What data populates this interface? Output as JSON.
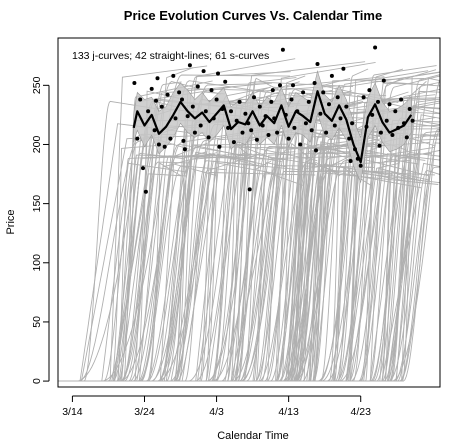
{
  "chart_data": {
    "type": "line",
    "title": "Price Evolution Curves Vs. Calendar Time",
    "xlabel": "Calendar Time",
    "ylabel": "Price",
    "annotation": "133 j-curves; 42 straight-lines; 61 s-curves",
    "x_axis": {
      "unit": "days since 3/14",
      "range": [
        -2,
        51
      ],
      "ticks": [
        {
          "label": "3/14",
          "value": 0
        },
        {
          "label": "3/24",
          "value": 10
        },
        {
          "label": "4/3",
          "value": 20
        },
        {
          "label": "4/13",
          "value": 30
        },
        {
          "label": "4/23",
          "value": 40
        }
      ]
    },
    "y_axis": {
      "range": [
        -5,
        290
      ],
      "ticks": [
        0,
        50,
        100,
        150,
        200,
        250
      ]
    },
    "grid": false,
    "legend": "none",
    "colors": {
      "curves": "#b0b0b0",
      "band": "#c8c8c8",
      "mean_line": "#000000",
      "points": "#000000"
    },
    "series": [
      {
        "values": [
          [
            8.5,
            214
          ],
          [
            9,
            228
          ],
          [
            10,
            216
          ],
          [
            11,
            225
          ],
          [
            12,
            209
          ],
          [
            13,
            215
          ],
          [
            14,
            225
          ],
          [
            15,
            236
          ],
          [
            16,
            228
          ],
          [
            17,
            222
          ],
          [
            18,
            227
          ],
          [
            19,
            219
          ],
          [
            20,
            226
          ],
          [
            21,
            233
          ],
          [
            22,
            213
          ],
          [
            23,
            219
          ],
          [
            24,
            217
          ],
          [
            25,
            228
          ],
          [
            26,
            216
          ],
          [
            27,
            224
          ],
          [
            28,
            218
          ],
          [
            29,
            233
          ],
          [
            30,
            215
          ],
          [
            31,
            228
          ],
          [
            32,
            224
          ],
          [
            33,
            219
          ],
          [
            34,
            245
          ],
          [
            35,
            226
          ],
          [
            36,
            220
          ],
          [
            37,
            233
          ],
          [
            38,
            221
          ],
          [
            39,
            200
          ],
          [
            40,
            185
          ],
          [
            41,
            223
          ],
          [
            42,
            234
          ],
          [
            43,
            219
          ],
          [
            44,
            210
          ],
          [
            45,
            213
          ],
          [
            46,
            216
          ],
          [
            47,
            225
          ]
        ]
      }
    ],
    "band": {
      "upper": [
        [
          8.5,
          226
        ],
        [
          9,
          244
        ],
        [
          10,
          238
        ],
        [
          11,
          240
        ],
        [
          12,
          228
        ],
        [
          13,
          232
        ],
        [
          14,
          244
        ],
        [
          15,
          252
        ],
        [
          16,
          246
        ],
        [
          17,
          238
        ],
        [
          18,
          244
        ],
        [
          19,
          236
        ],
        [
          20,
          242
        ],
        [
          21,
          248
        ],
        [
          22,
          232
        ],
        [
          23,
          236
        ],
        [
          24,
          235
        ],
        [
          25,
          244
        ],
        [
          26,
          232
        ],
        [
          27,
          240
        ],
        [
          28,
          236
        ],
        [
          29,
          248
        ],
        [
          30,
          232
        ],
        [
          31,
          244
        ],
        [
          32,
          240
        ],
        [
          33,
          236
        ],
        [
          34,
          262
        ],
        [
          35,
          242
        ],
        [
          36,
          236
        ],
        [
          37,
          250
        ],
        [
          38,
          238
        ],
        [
          39,
          220
        ],
        [
          40,
          206
        ],
        [
          41,
          240
        ],
        [
          42,
          252
        ],
        [
          43,
          236
        ],
        [
          44,
          228
        ],
        [
          45,
          230
        ],
        [
          46,
          234
        ],
        [
          47,
          240
        ]
      ],
      "lower": [
        [
          8.5,
          202
        ],
        [
          9,
          212
        ],
        [
          10,
          198
        ],
        [
          11,
          208
        ],
        [
          12,
          192
        ],
        [
          13,
          198
        ],
        [
          14,
          206
        ],
        [
          15,
          218
        ],
        [
          16,
          210
        ],
        [
          17,
          206
        ],
        [
          18,
          210
        ],
        [
          19,
          202
        ],
        [
          20,
          208
        ],
        [
          21,
          216
        ],
        [
          22,
          196
        ],
        [
          23,
          202
        ],
        [
          24,
          200
        ],
        [
          25,
          210
        ],
        [
          26,
          200
        ],
        [
          27,
          206
        ],
        [
          28,
          200
        ],
        [
          29,
          216
        ],
        [
          30,
          198
        ],
        [
          31,
          210
        ],
        [
          32,
          208
        ],
        [
          33,
          202
        ],
        [
          34,
          226
        ],
        [
          35,
          208
        ],
        [
          36,
          204
        ],
        [
          37,
          214
        ],
        [
          38,
          204
        ],
        [
          39,
          182
        ],
        [
          40,
          168
        ],
        [
          41,
          206
        ],
        [
          42,
          216
        ],
        [
          43,
          202
        ],
        [
          44,
          194
        ],
        [
          45,
          196
        ],
        [
          46,
          200
        ],
        [
          47,
          210
        ]
      ]
    },
    "points": [
      [
        8.6,
        252
      ],
      [
        9,
        205
      ],
      [
        9.4,
        238
      ],
      [
        9.8,
        180
      ],
      [
        10.2,
        160
      ],
      [
        10.5,
        228
      ],
      [
        11,
        247
      ],
      [
        11.4,
        212
      ],
      [
        11.8,
        256
      ],
      [
        12,
        200
      ],
      [
        12.4,
        232
      ],
      [
        12.8,
        198
      ],
      [
        13.2,
        242
      ],
      [
        13.6,
        205
      ],
      [
        14,
        258
      ],
      [
        14.3,
        222
      ],
      [
        14.8,
        244
      ],
      [
        15.2,
        238
      ],
      [
        15.6,
        196
      ],
      [
        16,
        224
      ],
      [
        16.3,
        267
      ],
      [
        16.7,
        232
      ],
      [
        17,
        210
      ],
      [
        17.4,
        249
      ],
      [
        17.8,
        216
      ],
      [
        18.2,
        262
      ],
      [
        18.5,
        228
      ],
      [
        18.9,
        206
      ],
      [
        19.3,
        246
      ],
      [
        19.6,
        222
      ],
      [
        20,
        238
      ],
      [
        20.4,
        198
      ],
      [
        20.8,
        230
      ],
      [
        21.2,
        253
      ],
      [
        21.6,
        214
      ],
      [
        22,
        228
      ],
      [
        22.4,
        202
      ],
      [
        22.8,
        220
      ],
      [
        23.2,
        236
      ],
      [
        23.6,
        210
      ],
      [
        24,
        226
      ],
      [
        24.4,
        218
      ],
      [
        24.8,
        212
      ],
      [
        25.2,
        240
      ],
      [
        25.6,
        204
      ],
      [
        26,
        232
      ],
      [
        26.4,
        216
      ],
      [
        26.8,
        224
      ],
      [
        27.2,
        208
      ],
      [
        27.6,
        236
      ],
      [
        28,
        222
      ],
      [
        28.4,
        210
      ],
      [
        28.8,
        250
      ],
      [
        29.2,
        280
      ],
      [
        29.6,
        225
      ],
      [
        30,
        205
      ],
      [
        30.4,
        238
      ],
      [
        30.8,
        214
      ],
      [
        31.2,
        228
      ],
      [
        31.6,
        200
      ],
      [
        32,
        244
      ],
      [
        32.4,
        218
      ],
      [
        32.8,
        236
      ],
      [
        33.2,
        212
      ],
      [
        33.6,
        252
      ],
      [
        34,
        268
      ],
      [
        34.4,
        226
      ],
      [
        34.8,
        244
      ],
      [
        35.2,
        210
      ],
      [
        35.6,
        234
      ],
      [
        36,
        258
      ],
      [
        36.4,
        216
      ],
      [
        36.8,
        240
      ],
      [
        37.2,
        222
      ],
      [
        37.6,
        264
      ],
      [
        38,
        232
      ],
      [
        38.4,
        205
      ],
      [
        38.8,
        218
      ],
      [
        39.2,
        196
      ],
      [
        39.6,
        188
      ],
      [
        40,
        182
      ],
      [
        40.4,
        240
      ],
      [
        40.8,
        215
      ],
      [
        41.2,
        246
      ],
      [
        41.6,
        225
      ],
      [
        42,
        282
      ],
      [
        42.4,
        236
      ],
      [
        42.8,
        210
      ],
      [
        43.2,
        254
      ],
      [
        43.6,
        220
      ],
      [
        44,
        234
      ],
      [
        44.4,
        208
      ],
      [
        44.8,
        228
      ],
      [
        45.2,
        214
      ],
      [
        45.6,
        238
      ],
      [
        46,
        218
      ],
      [
        46.4,
        206
      ],
      [
        46.8,
        230
      ],
      [
        47.2,
        220
      ],
      [
        38.6,
        186
      ],
      [
        33.8,
        195
      ],
      [
        24.6,
        162
      ],
      [
        11.6,
        237
      ],
      [
        27.8,
        246
      ],
      [
        20.2,
        260
      ],
      [
        15.4,
        203
      ],
      [
        30.6,
        250
      ],
      [
        42.6,
        199
      ]
    ]
  }
}
